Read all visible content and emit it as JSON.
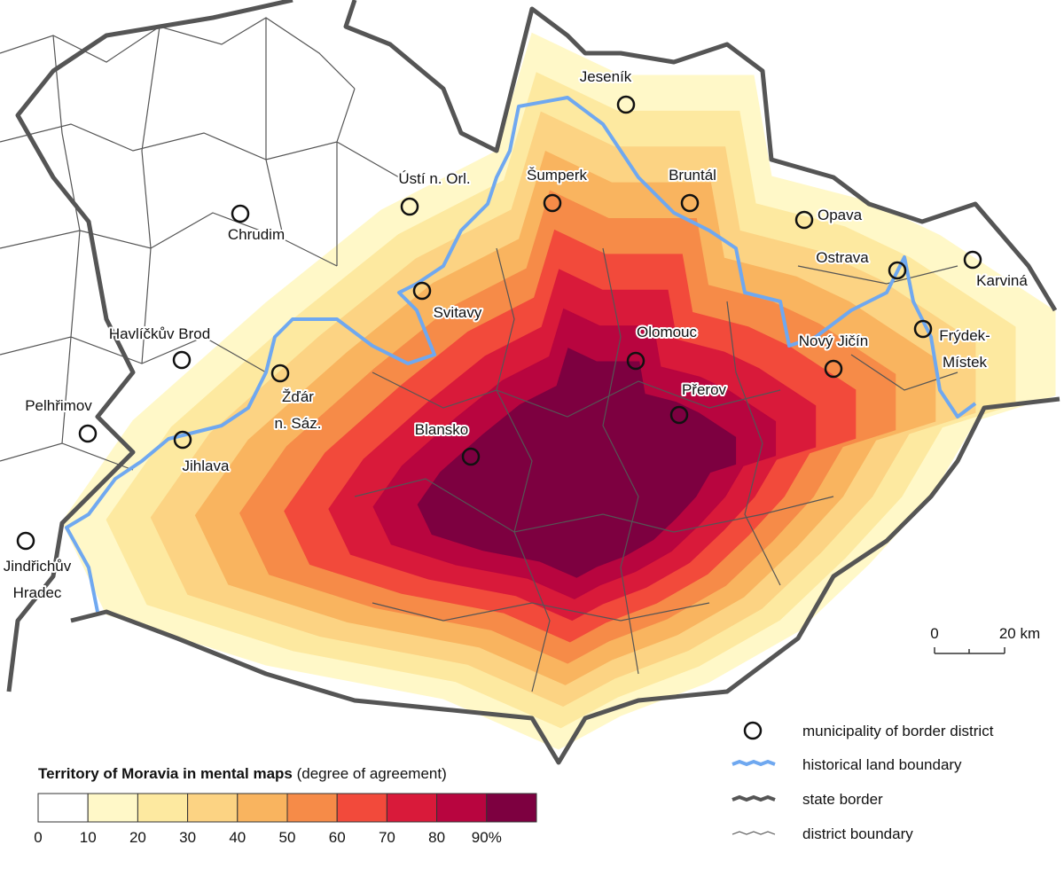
{
  "map": {
    "cities": [
      {
        "name": [
          "Jeseník"
        ]
      },
      {
        "name": [
          "Šumperk"
        ]
      },
      {
        "name": [
          "Bruntál"
        ]
      },
      {
        "name": [
          "Ústí n. Orl."
        ]
      },
      {
        "name": [
          "Chrudim"
        ]
      },
      {
        "name": [
          "Opava"
        ]
      },
      {
        "name": [
          "Ostrava"
        ]
      },
      {
        "name": [
          "Karviná"
        ]
      },
      {
        "name": [
          "Svitavy"
        ]
      },
      {
        "name": [
          "Havlíčkův Brod"
        ]
      },
      {
        "name": [
          "Olomouc"
        ]
      },
      {
        "name": [
          "Nový Jičín"
        ]
      },
      {
        "name": [
          "Frýdek-",
          "Místek"
        ]
      },
      {
        "name": [
          "Přerov"
        ]
      },
      {
        "name": [
          "Žďár",
          "n. Sáz."
        ]
      },
      {
        "name": [
          "Pelhřimov"
        ]
      },
      {
        "name": [
          "Blansko"
        ]
      },
      {
        "name": [
          "Jihlava"
        ]
      },
      {
        "name": [
          "Jindřichův",
          "Hradec"
        ]
      }
    ],
    "scale_bar": {
      "start": "0",
      "end": "20 km"
    },
    "legend": {
      "title": "Territory of Moravia in mental maps",
      "subtitle": "(degree of agreement)",
      "colors": [
        "#ffffff",
        "#fff8c8",
        "#fde9a0",
        "#fcd383",
        "#f9b45f",
        "#f68b48",
        "#f24a3b",
        "#d91a3a",
        "#b8053f",
        "#7d0040"
      ],
      "ticks": [
        "0",
        "10",
        "20",
        "30",
        "40",
        "50",
        "60",
        "70",
        "80",
        "90%"
      ],
      "items": [
        "municipality of border district",
        "historical land boundary",
        "state border",
        "district boundary"
      ]
    }
  }
}
